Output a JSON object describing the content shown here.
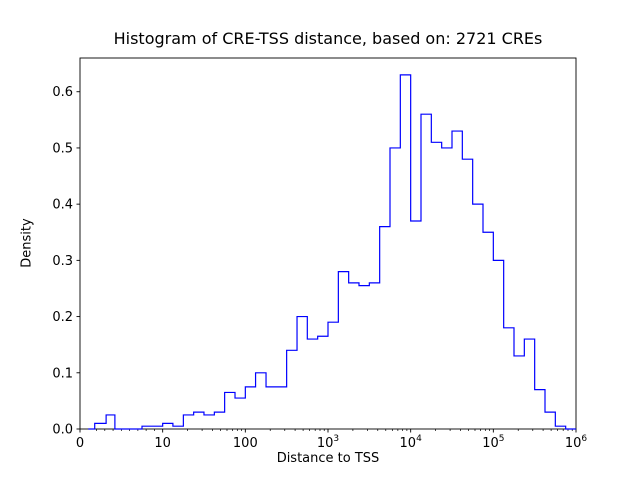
{
  "chart_data": {
    "type": "histogram_step",
    "title": "Histogram of CRE-TSS distance, based on: 2721 CREs",
    "xlabel": "Distance to TSS",
    "ylabel": "Density",
    "n_cres": 2721,
    "x_scale": "symlog",
    "grid": false,
    "legend": false,
    "line_color": "#0000ff",
    "axis_color": "#000000",
    "ylim": [
      0,
      0.66
    ],
    "y_ticks": [
      "0.0",
      "0.1",
      "0.2",
      "0.3",
      "0.4",
      "0.5",
      "0.6"
    ],
    "x_major_ticks": [
      {
        "value": 0,
        "base": "0",
        "exp": ""
      },
      {
        "value": 10,
        "base": "10",
        "exp": ""
      },
      {
        "value": 100,
        "base": "100",
        "exp": ""
      },
      {
        "value": 1000,
        "base": "10",
        "exp": "3"
      },
      {
        "value": 10000,
        "base": "10",
        "exp": "4"
      },
      {
        "value": 100000,
        "base": "10",
        "exp": "5"
      },
      {
        "value": 1000000,
        "base": "10",
        "exp": "6"
      }
    ],
    "bin_edges": [
      1,
      1.33,
      1.78,
      2.37,
      3.16,
      4.22,
      5.62,
      7.5,
      10,
      13.3,
      17.8,
      23.7,
      31.6,
      42.2,
      56.2,
      75,
      100,
      133,
      178,
      237,
      316,
      422,
      562,
      750,
      1000,
      1334,
      1778,
      2371,
      3162,
      4217,
      5623,
      7499,
      10000,
      13335,
      17783,
      23714,
      31623,
      42170,
      56234,
      74989,
      100000,
      133352,
      177828,
      237137,
      316228,
      421697,
      562341,
      749894,
      1000000
    ],
    "densities": [
      0,
      0,
      0.01,
      0.01,
      0.025,
      0,
      0,
      0.005,
      0.01,
      0.005,
      0.025,
      0.03,
      0.025,
      0.03,
      0.065,
      0.055,
      0.075,
      0.1,
      0.075,
      0.075,
      0.14,
      0.2,
      0.16,
      0.165,
      0.19,
      0.28,
      0.26,
      0.255,
      0.26,
      0.36,
      0.5,
      0.63,
      0.37,
      0.56,
      0.51,
      0.5,
      0.53,
      0.48,
      0.4,
      0.35,
      0.3,
      0.18,
      0.13,
      0.16,
      0.07,
      0.03,
      0.005,
      0
    ]
  }
}
